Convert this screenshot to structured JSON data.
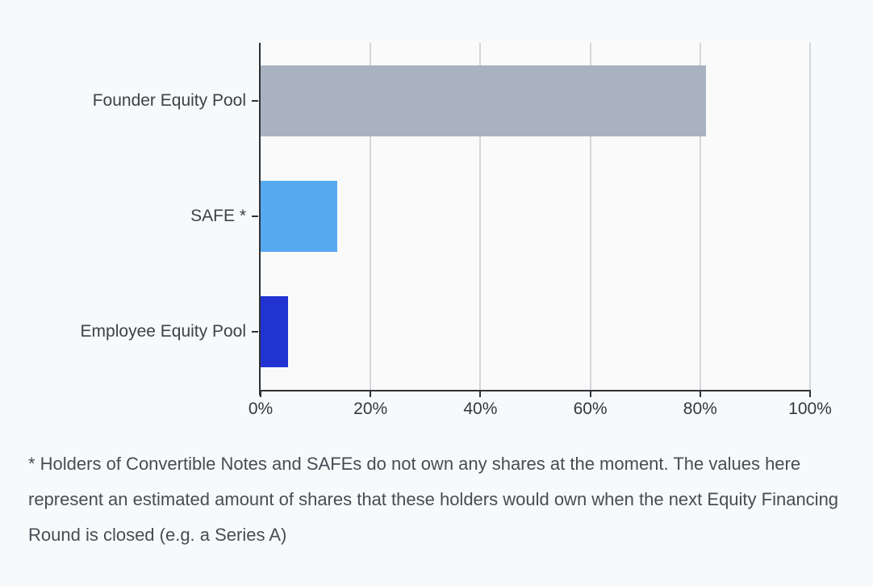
{
  "chart_data": {
    "type": "bar",
    "orientation": "horizontal",
    "title": "",
    "xlabel": "",
    "ylabel": "",
    "categories": [
      "Founder Equity Pool",
      "SAFE *",
      "Employee Equity Pool"
    ],
    "values": [
      81,
      14,
      5
    ],
    "value_unit": "%",
    "bar_colors": [
      "#a9b2c1",
      "#57a9f0",
      "#2133d1"
    ],
    "xlim": [
      0,
      100
    ],
    "x_tick_values": [
      0,
      20,
      40,
      60,
      80,
      100
    ],
    "x_tick_labels": [
      "0%",
      "20%",
      "40%",
      "60%",
      "80%",
      "100%"
    ],
    "grid": "vertical-gridlines-on",
    "legend": "none"
  },
  "footnote": {
    "text": "* Holders of Convertible Notes and SAFEs do not own any shares at the moment. The values here represent an estimated amount of shares that these holders would own when the next Equity Financing Round is closed (e.g. a Series A)"
  },
  "colors": {
    "background": "#f8f9fa",
    "plot_background": "#fafafb",
    "axis": "#2e3237",
    "gridline": "#d5d6d8",
    "x_tick_label": "#33383e",
    "category_label": "#3c4248",
    "footnote_text": "#474d54"
  }
}
